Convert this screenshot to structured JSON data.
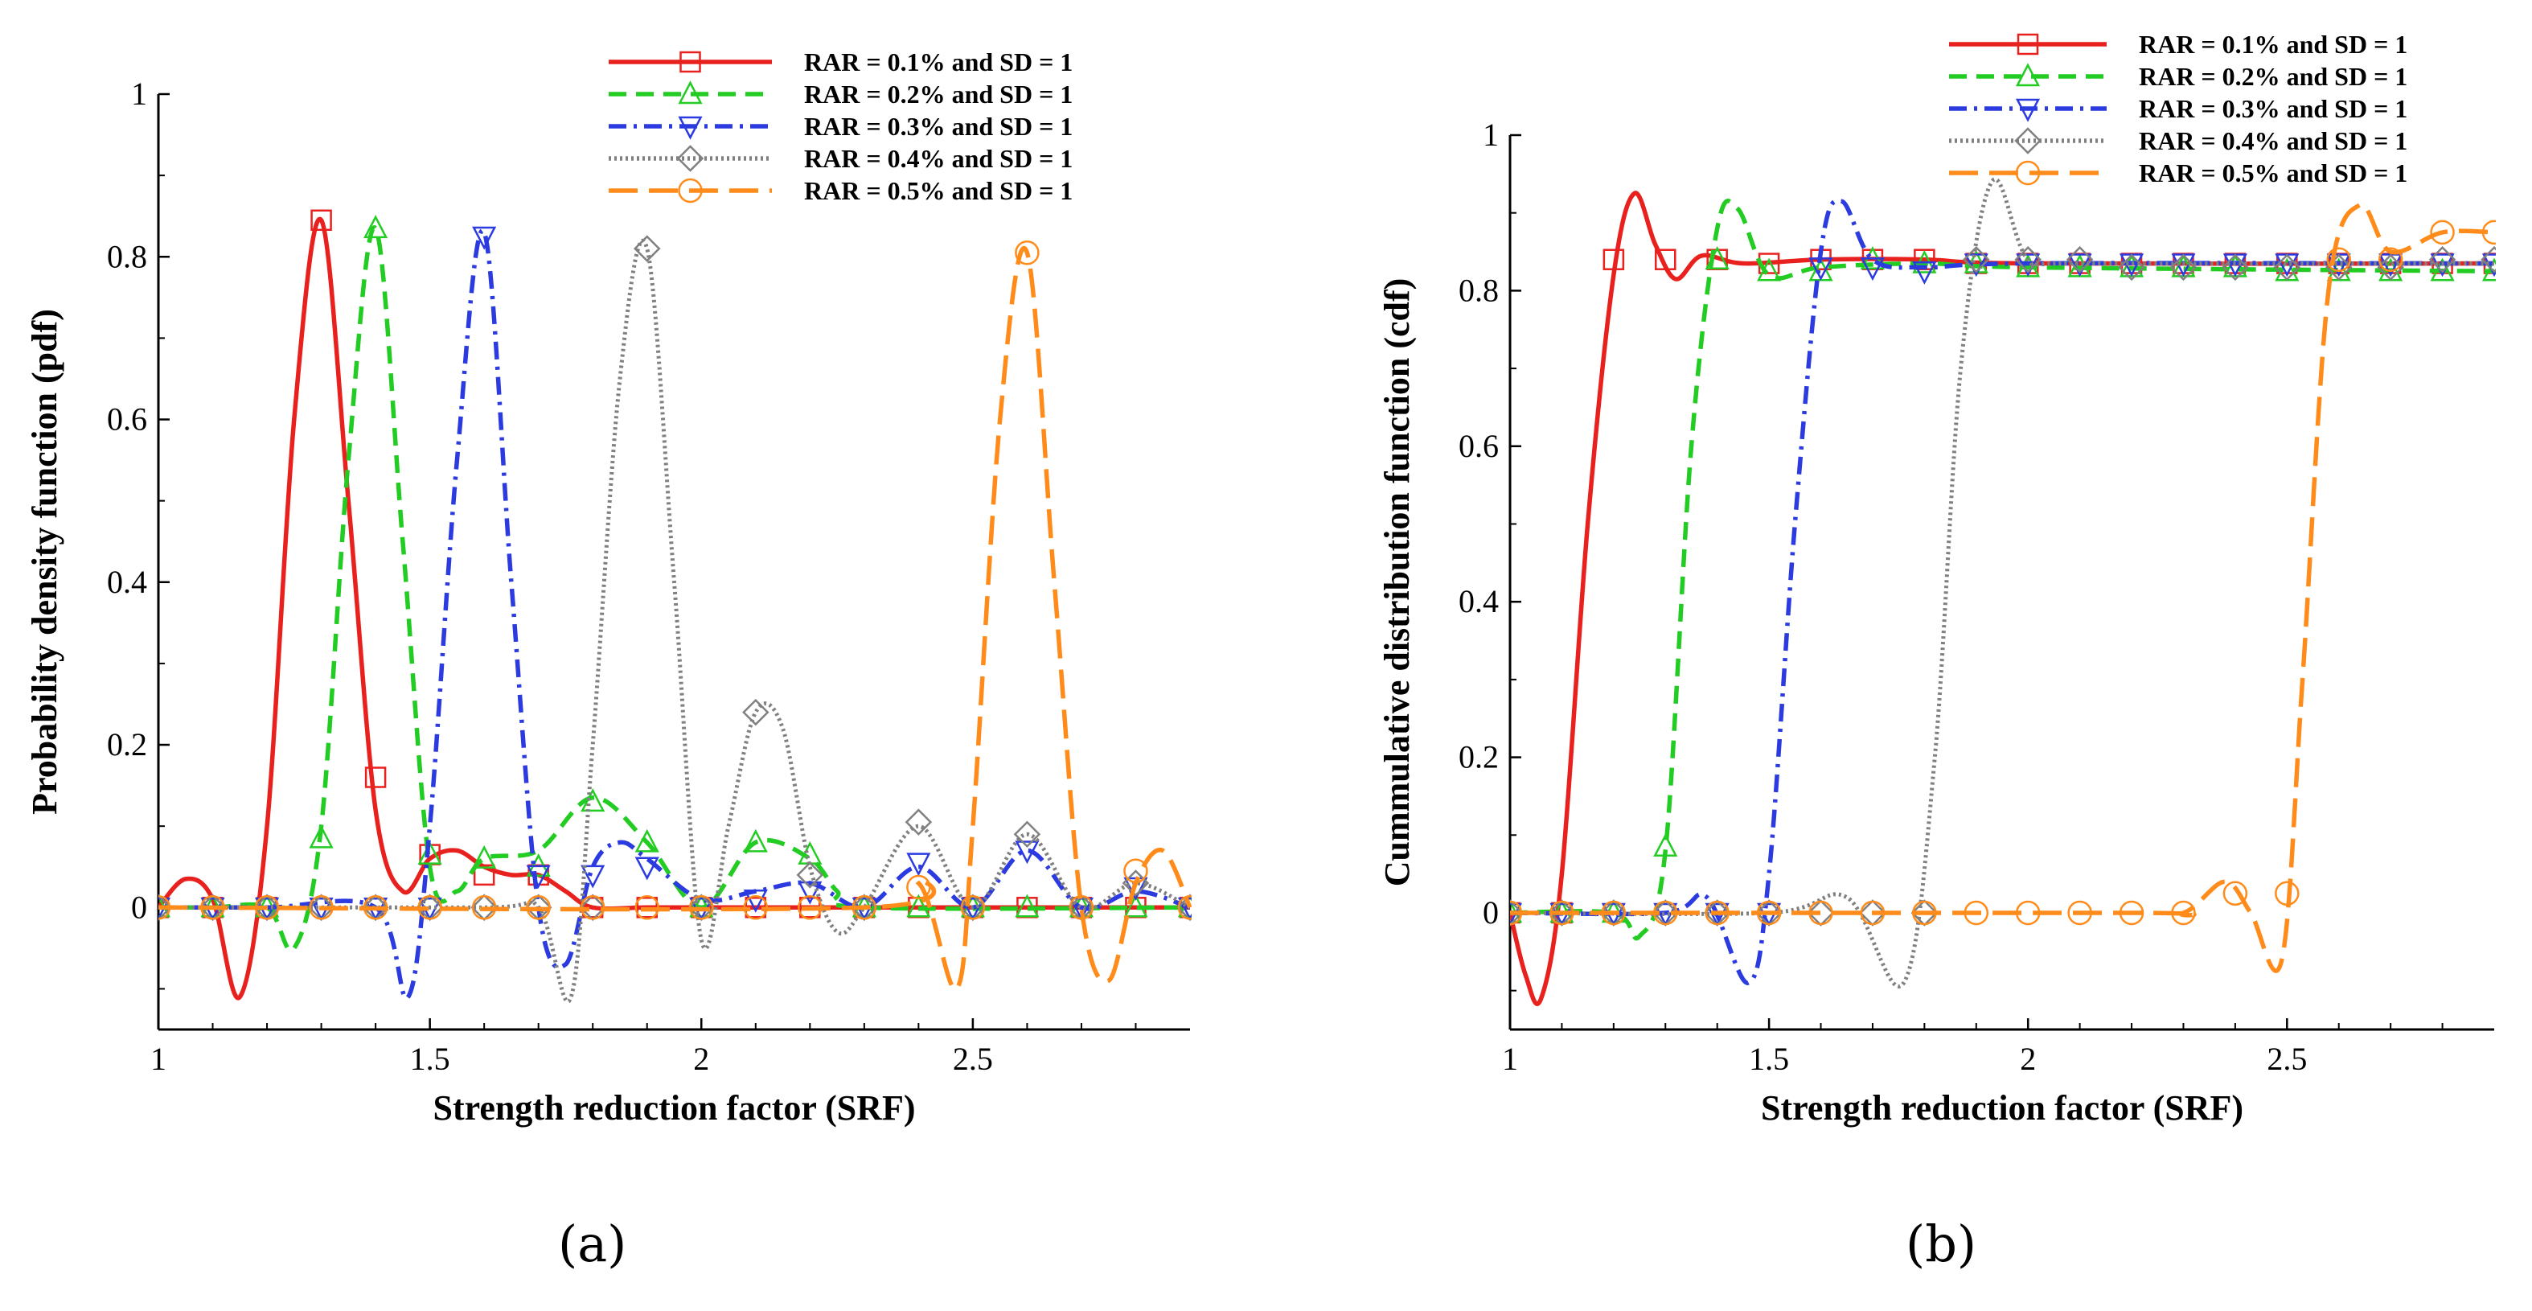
{
  "panel_labels": [
    "(a)",
    "(b)"
  ],
  "chart_data": [
    {
      "type": "line",
      "panel": "(a)",
      "xlabel": "Strength reduction factor (SRF)",
      "ylabel": "Probability density function (pdf)",
      "xlim": [
        1,
        2.9
      ],
      "ylim": [
        -0.15,
        1
      ],
      "xticks": [
        1,
        1.5,
        2,
        2.5
      ],
      "yticks": [
        0,
        0.2,
        0.4,
        0.6,
        0.8,
        1
      ],
      "legend_position": "top-right",
      "series": [
        {
          "name": "RAR = 0.1% and SD = 1",
          "color": "#e8211e",
          "dash": "solid",
          "marker": "square",
          "x": [
            1,
            1.05,
            1.1,
            1.15,
            1.2,
            1.25,
            1.3,
            1.35,
            1.4,
            1.45,
            1.5,
            1.55,
            1.6,
            1.65,
            1.7,
            1.75,
            1.8,
            1.9,
            2.0,
            2.5,
            2.9
          ],
          "y": [
            0,
            0.035,
            0.01,
            -0.11,
            0.1,
            0.6,
            0.845,
            0.5,
            0.12,
            0.02,
            0.06,
            0.07,
            0.05,
            0.04,
            0.04,
            0.02,
            0.0,
            0.0,
            0.0,
            0.0,
            0.0
          ],
          "marker_x": [
            1,
            1.1,
            1.2,
            1.3,
            1.4,
            1.5,
            1.6,
            1.7,
            1.8,
            1.9,
            2.0,
            2.1,
            2.2,
            2.3,
            2.4,
            2.5,
            2.6,
            2.7,
            2.8,
            2.9
          ],
          "marker_y": [
            0,
            0,
            0,
            0.845,
            0.16,
            0.065,
            0.04,
            0.04,
            0,
            0,
            0,
            0,
            0,
            0,
            0,
            0,
            0,
            0,
            0,
            0
          ]
        },
        {
          "name": "RAR = 0.2% and SD = 1",
          "color": "#22cc22",
          "dash": "dash",
          "marker": "triangle-up",
          "x": [
            1,
            1.1,
            1.2,
            1.25,
            1.3,
            1.35,
            1.4,
            1.45,
            1.5,
            1.55,
            1.6,
            1.7,
            1.8,
            1.9,
            2.0,
            2.1,
            2.2,
            2.25,
            2.3,
            2.9
          ],
          "y": [
            0,
            0,
            0,
            -0.05,
            0.1,
            0.55,
            0.835,
            0.45,
            0.05,
            0.02,
            0.06,
            0.07,
            0.135,
            0.08,
            0.0,
            0.08,
            0.06,
            0.02,
            0.0,
            0.0
          ],
          "marker_x": [
            1,
            1.1,
            1.2,
            1.3,
            1.4,
            1.5,
            1.6,
            1.7,
            1.8,
            1.9,
            2.0,
            2.1,
            2.2,
            2.3,
            2.4,
            2.5,
            2.6,
            2.7,
            2.8,
            2.9
          ],
          "marker_y": [
            0,
            0,
            0,
            0.085,
            0.835,
            0.065,
            0.06,
            0.05,
            0.13,
            0.08,
            0,
            0.08,
            0.065,
            0,
            0,
            0,
            0,
            0,
            0,
            0
          ]
        },
        {
          "name": "RAR = 0.3% and SD = 1",
          "color": "#2b3be0",
          "dash": "dashdot",
          "marker": "triangle-down",
          "x": [
            1,
            1.2,
            1.4,
            1.46,
            1.5,
            1.55,
            1.6,
            1.65,
            1.7,
            1.75,
            1.8,
            1.85,
            1.9,
            2.0,
            2.1,
            2.2,
            2.3,
            2.4,
            2.5,
            2.6,
            2.7,
            2.8,
            2.9
          ],
          "y": [
            0,
            0,
            0,
            -0.11,
            0.1,
            0.55,
            0.83,
            0.4,
            0.0,
            -0.07,
            0.05,
            0.08,
            0.06,
            0.01,
            0.02,
            0.03,
            0.0,
            0.05,
            0.0,
            0.07,
            0.0,
            0.02,
            0.0
          ],
          "marker_x": [
            1,
            1.1,
            1.2,
            1.3,
            1.4,
            1.5,
            1.6,
            1.7,
            1.8,
            1.9,
            2.0,
            2.1,
            2.2,
            2.3,
            2.4,
            2.5,
            2.6,
            2.7,
            2.8,
            2.9
          ],
          "marker_y": [
            0,
            0,
            0,
            0,
            0,
            0,
            0.825,
            0.04,
            0.04,
            0.05,
            0,
            0.01,
            0.02,
            0,
            0.055,
            0,
            0.07,
            0,
            0.025,
            0
          ]
        },
        {
          "name": "RAR = 0.4% and SD = 1",
          "color": "#808080",
          "dash": "dot",
          "marker": "diamond",
          "x": [
            1,
            1.6,
            1.7,
            1.76,
            1.8,
            1.85,
            1.9,
            1.95,
            2.0,
            2.05,
            2.1,
            2.15,
            2.2,
            2.25,
            2.3,
            2.4,
            2.5,
            2.6,
            2.7,
            2.8,
            2.9
          ],
          "y": [
            0,
            0,
            0,
            -0.11,
            0.2,
            0.65,
            0.81,
            0.4,
            -0.04,
            0.1,
            0.24,
            0.22,
            0.05,
            -0.03,
            0.0,
            0.1,
            0.0,
            0.09,
            0.0,
            0.03,
            0.0
          ],
          "marker_x": [
            1,
            1.1,
            1.2,
            1.3,
            1.4,
            1.5,
            1.6,
            1.7,
            1.8,
            1.9,
            2.0,
            2.1,
            2.2,
            2.3,
            2.4,
            2.5,
            2.6,
            2.7,
            2.8,
            2.9
          ],
          "marker_y": [
            0,
            0,
            0,
            0,
            0,
            0,
            0,
            0,
            0,
            0.81,
            0,
            0.24,
            0.04,
            0,
            0.105,
            0,
            0.09,
            0,
            0.03,
            0
          ]
        },
        {
          "name": "RAR = 0.5% and SD = 1",
          "color": "#ff8c1a",
          "dash": "longdash",
          "marker": "circle",
          "x": [
            1,
            2.3,
            2.4,
            2.47,
            2.5,
            2.55,
            2.6,
            2.65,
            2.7,
            2.75,
            2.8,
            2.85,
            2.9
          ],
          "y": [
            0,
            0,
            0.03,
            -0.1,
            0.1,
            0.6,
            0.805,
            0.4,
            0.0,
            -0.09,
            0.03,
            0.07,
            0.0
          ],
          "marker_x": [
            1,
            1.1,
            1.2,
            1.3,
            1.4,
            1.5,
            1.6,
            1.7,
            1.8,
            1.9,
            2.0,
            2.1,
            2.2,
            2.3,
            2.4,
            2.5,
            2.6,
            2.7,
            2.8,
            2.9
          ],
          "marker_y": [
            0,
            0,
            0,
            0,
            0,
            0,
            0,
            0,
            0,
            0,
            0,
            0,
            0,
            0,
            0.025,
            0,
            0.805,
            0,
            0.045,
            0
          ]
        }
      ]
    },
    {
      "type": "line",
      "panel": "(b)",
      "xlabel": "Strength reduction factor (SRF)",
      "ylabel": "Cummulative distribution function (cdf)",
      "xlim": [
        1,
        2.9
      ],
      "ylim": [
        -0.15,
        1
      ],
      "xticks": [
        1,
        1.5,
        2,
        2.5
      ],
      "yticks": [
        0,
        0.2,
        0.4,
        0.6,
        0.8,
        1
      ],
      "legend_position": "top-right",
      "series": [
        {
          "name": "RAR = 0.1% and SD = 1",
          "color": "#e8211e",
          "dash": "solid",
          "marker": "square",
          "x": [
            1,
            1.03,
            1.06,
            1.1,
            1.15,
            1.2,
            1.24,
            1.28,
            1.32,
            1.37,
            1.45,
            1.6,
            1.8,
            2.0,
            2.9
          ],
          "y": [
            0,
            -0.08,
            -0.11,
            0.05,
            0.5,
            0.82,
            0.925,
            0.86,
            0.815,
            0.845,
            0.835,
            0.84,
            0.84,
            0.835,
            0.835
          ],
          "marker_x": [
            1,
            1.1,
            1.2,
            1.3,
            1.4,
            1.5,
            1.6,
            1.7,
            1.8,
            1.9,
            2.0,
            2.1,
            2.2,
            2.3,
            2.4,
            2.5,
            2.6,
            2.7,
            2.8,
            2.9
          ],
          "marker_y": [
            0,
            0,
            0.84,
            0.84,
            0.84,
            0.835,
            0.84,
            0.84,
            0.84,
            0.835,
            0.835,
            0.835,
            0.835,
            0.835,
            0.835,
            0.835,
            0.835,
            0.835,
            0.835,
            0.835
          ]
        },
        {
          "name": "RAR = 0.2% and SD = 1",
          "color": "#22cc22",
          "dash": "dash",
          "marker": "triangle-up",
          "x": [
            1,
            1.2,
            1.25,
            1.3,
            1.35,
            1.4,
            1.44,
            1.5,
            1.6,
            1.8,
            2.0,
            2.9
          ],
          "y": [
            0,
            0,
            -0.03,
            0.08,
            0.6,
            0.88,
            0.905,
            0.82,
            0.83,
            0.835,
            0.83,
            0.825
          ],
          "marker_x": [
            1,
            1.1,
            1.2,
            1.3,
            1.4,
            1.5,
            1.6,
            1.7,
            1.8,
            1.9,
            2.0,
            2.1,
            2.2,
            2.3,
            2.4,
            2.5,
            2.6,
            2.7,
            2.8,
            2.9
          ],
          "marker_y": [
            0,
            0,
            0,
            0.085,
            0.84,
            0.825,
            0.825,
            0.84,
            0.835,
            0.835,
            0.83,
            0.83,
            0.83,
            0.83,
            0.83,
            0.825,
            0.825,
            0.825,
            0.825,
            0.825
          ]
        },
        {
          "name": "RAR = 0.3% and SD = 1",
          "color": "#2b3be0",
          "dash": "dashdot",
          "marker": "triangle-down",
          "x": [
            1,
            1.3,
            1.38,
            1.46,
            1.5,
            1.55,
            1.6,
            1.64,
            1.7,
            1.8,
            2.0,
            2.9
          ],
          "y": [
            0,
            0,
            0.02,
            -0.09,
            0.05,
            0.5,
            0.85,
            0.915,
            0.84,
            0.83,
            0.835,
            0.835
          ],
          "marker_x": [
            1,
            1.1,
            1.2,
            1.3,
            1.4,
            1.5,
            1.6,
            1.7,
            1.8,
            1.9,
            2.0,
            2.1,
            2.2,
            2.3,
            2.4,
            2.5,
            2.6,
            2.7,
            2.8,
            2.9
          ],
          "marker_y": [
            0,
            0,
            0,
            0,
            0,
            0,
            0.83,
            0.83,
            0.825,
            0.835,
            0.835,
            0.835,
            0.835,
            0.835,
            0.835,
            0.835,
            0.835,
            0.835,
            0.835,
            0.835
          ]
        },
        {
          "name": "RAR = 0.4% and SD = 1",
          "color": "#808080",
          "dash": "dot",
          "marker": "diamond",
          "x": [
            1,
            1.5,
            1.65,
            1.76,
            1.82,
            1.87,
            1.93,
            2.0,
            2.1,
            2.9
          ],
          "y": [
            0,
            0,
            0.02,
            -0.09,
            0.2,
            0.7,
            0.94,
            0.84,
            0.835,
            0.835
          ],
          "marker_x": [
            1,
            1.1,
            1.2,
            1.3,
            1.4,
            1.5,
            1.6,
            1.7,
            1.8,
            1.9,
            2.0,
            2.1,
            2.2,
            2.3,
            2.4,
            2.5,
            2.6,
            2.7,
            2.8,
            2.9
          ],
          "marker_y": [
            0,
            0,
            0,
            0,
            0,
            0,
            0,
            0,
            0,
            0.84,
            0.84,
            0.84,
            0.83,
            0.83,
            0.83,
            0.83,
            0.83,
            0.83,
            0.84,
            0.84
          ]
        },
        {
          "name": "RAR = 0.5% and SD = 1",
          "color": "#ff8c1a",
          "dash": "longdash",
          "marker": "circle",
          "x": [
            1,
            2.2,
            2.3,
            2.38,
            2.43,
            2.49,
            2.53,
            2.58,
            2.64,
            2.7,
            2.8,
            2.9
          ],
          "y": [
            0,
            0,
            0.0,
            0.04,
            0.0,
            -0.06,
            0.3,
            0.8,
            0.91,
            0.85,
            0.875,
            0.875
          ],
          "marker_x": [
            1,
            1.1,
            1.2,
            1.3,
            1.4,
            1.5,
            1.6,
            1.7,
            1.8,
            1.9,
            2.0,
            2.1,
            2.2,
            2.3,
            2.4,
            2.5,
            2.6,
            2.7,
            2.8,
            2.9
          ],
          "marker_y": [
            0,
            0,
            0,
            0,
            0,
            0,
            0,
            0,
            0,
            0,
            0,
            0,
            0,
            0,
            0.025,
            0.025,
            0.84,
            0.84,
            0.875,
            0.875
          ]
        }
      ]
    }
  ]
}
